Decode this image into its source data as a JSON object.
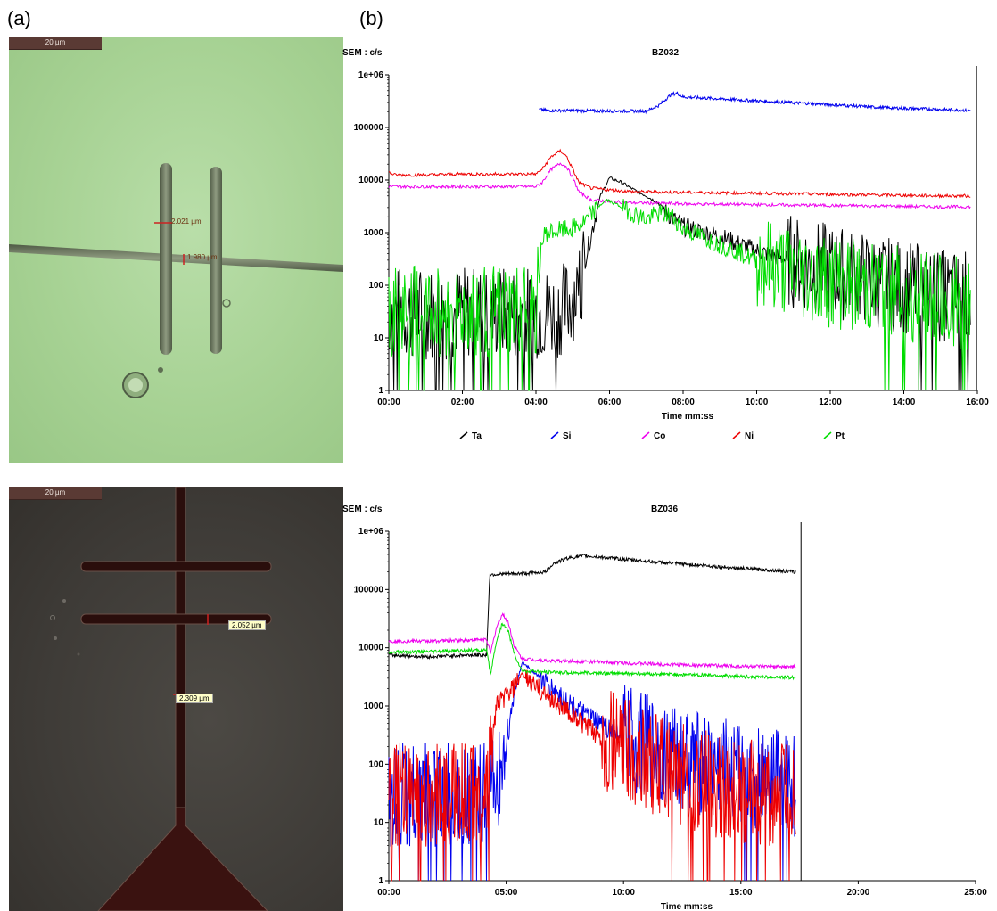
{
  "panel_labels": {
    "a": "(a)",
    "b": "(b)"
  },
  "micrographs": [
    {
      "scale_bar": "20 µm",
      "measurements": [
        "2.021 µm",
        "1.980 µm"
      ]
    },
    {
      "scale_bar": "20 µm",
      "measurements": [
        "2.052 µm",
        "2.309 µm"
      ]
    }
  ],
  "chart_data": [
    {
      "type": "line",
      "title": "BZ032",
      "ylabel": "SEM : c/s",
      "xlabel": "Time  mm:ss",
      "y_scale": "log",
      "ylim": [
        1,
        1000000
      ],
      "xlim": [
        0,
        960
      ],
      "x_unit": "seconds",
      "x_ticks": [
        0,
        120,
        240,
        360,
        480,
        600,
        720,
        840,
        960
      ],
      "x_tick_labels": [
        "00:00",
        "02:00",
        "04:00",
        "06:00",
        "08:00",
        "10:00",
        "12:00",
        "14:00",
        "16:00"
      ],
      "y_ticks": [
        1,
        10,
        100,
        1000,
        10000,
        100000,
        1000000
      ],
      "y_tick_labels": [
        "1",
        "10",
        "100",
        "1000",
        "10000",
        "100000",
        "1e+06"
      ],
      "legend": {
        "placement": "bottom",
        "entries": [
          "Ta",
          "Si",
          "Co",
          "Ni",
          "Pt"
        ]
      },
      "series": [
        {
          "name": "Ta",
          "color": "#000000",
          "points": [
            [
              0,
              30
            ],
            [
              60,
              30
            ],
            [
              120,
              30
            ],
            [
              180,
              30
            ],
            [
              240,
              30
            ],
            [
              270,
              30
            ],
            [
              290,
              40
            ],
            [
              310,
              100
            ],
            [
              330,
              900
            ],
            [
              345,
              5000
            ],
            [
              360,
              11000
            ],
            [
              380,
              9000
            ],
            [
              400,
              6500
            ],
            [
              420,
              5000
            ],
            [
              440,
              3600
            ],
            [
              460,
              2000
            ],
            [
              480,
              1300
            ],
            [
              540,
              850
            ],
            [
              600,
              450
            ],
            [
              660,
              280
            ],
            [
              720,
              190
            ],
            [
              780,
              130
            ],
            [
              840,
              90
            ],
            [
              900,
              65
            ],
            [
              950,
              60
            ]
          ]
        },
        {
          "name": "Si",
          "color": "#0000ee",
          "points": [
            [
              245,
              220000
            ],
            [
              260,
              210000
            ],
            [
              300,
              210000
            ],
            [
              360,
              205000
            ],
            [
              420,
              205000
            ],
            [
              440,
              260000
            ],
            [
              460,
              420000
            ],
            [
              470,
              450000
            ],
            [
              480,
              380000
            ],
            [
              540,
              350000
            ],
            [
              600,
              320000
            ],
            [
              700,
              280000
            ],
            [
              800,
              240000
            ],
            [
              900,
              220000
            ],
            [
              950,
              210000
            ]
          ]
        },
        {
          "name": "Co",
          "color": "#ee00ee",
          "points": [
            [
              0,
              7500
            ],
            [
              60,
              7500
            ],
            [
              120,
              7500
            ],
            [
              180,
              7500
            ],
            [
              240,
              7500
            ],
            [
              250,
              9000
            ],
            [
              265,
              16000
            ],
            [
              280,
              21000
            ],
            [
              290,
              18000
            ],
            [
              300,
              11000
            ],
            [
              310,
              6000
            ],
            [
              330,
              4200
            ],
            [
              360,
              3900
            ],
            [
              400,
              3700
            ],
            [
              500,
              3500
            ],
            [
              600,
              3400
            ],
            [
              700,
              3300
            ],
            [
              800,
              3200
            ],
            [
              900,
              3100
            ],
            [
              950,
              3100
            ]
          ]
        },
        {
          "name": "Ni",
          "color": "#ee0000",
          "points": [
            [
              0,
              14000
            ],
            [
              10,
              12500
            ],
            [
              60,
              12500
            ],
            [
              120,
              13000
            ],
            [
              180,
              13000
            ],
            [
              240,
              13000
            ],
            [
              250,
              16000
            ],
            [
              265,
              28000
            ],
            [
              280,
              36000
            ],
            [
              290,
              28000
            ],
            [
              300,
              16000
            ],
            [
              310,
              9000
            ],
            [
              330,
              7000
            ],
            [
              360,
              6500
            ],
            [
              400,
              6000
            ],
            [
              500,
              5800
            ],
            [
              600,
              5600
            ],
            [
              700,
              5400
            ],
            [
              800,
              5200
            ],
            [
              900,
              5000
            ],
            [
              950,
              5000
            ]
          ]
        },
        {
          "name": "Pt",
          "color": "#00dd00",
          "points": [
            [
              0,
              30
            ],
            [
              60,
              30
            ],
            [
              120,
              30
            ],
            [
              180,
              30
            ],
            [
              240,
              30
            ],
            [
              248,
              500
            ],
            [
              255,
              1000
            ],
            [
              280,
              1100
            ],
            [
              300,
              1200
            ],
            [
              320,
              1600
            ],
            [
              340,
              3000
            ],
            [
              355,
              4200
            ],
            [
              370,
              3500
            ],
            [
              400,
              2300
            ],
            [
              420,
              1800
            ],
            [
              440,
              2300
            ],
            [
              460,
              2200
            ],
            [
              480,
              1200
            ],
            [
              540,
              600
            ],
            [
              600,
              300
            ],
            [
              660,
              180
            ],
            [
              720,
              120
            ],
            [
              780,
              90
            ],
            [
              840,
              70
            ],
            [
              900,
              50
            ],
            [
              950,
              40
            ]
          ]
        }
      ]
    },
    {
      "type": "line",
      "title": "BZ036",
      "ylabel": "SEM : c/s",
      "xlabel": "Time  mm:ss",
      "y_scale": "log",
      "ylim": [
        1,
        1000000
      ],
      "xlim": [
        0,
        1500
      ],
      "x_unit": "seconds",
      "x_ticks": [
        0,
        300,
        600,
        900,
        1200,
        1500
      ],
      "x_tick_labels": [
        "00:00",
        "05:00",
        "10:00",
        "15:00",
        "20:00",
        "25:00"
      ],
      "y_ticks": [
        1,
        10,
        100,
        1000,
        10000,
        100000,
        1000000
      ],
      "y_tick_labels": [
        "1",
        "10",
        "100",
        "1000",
        "10000",
        "100000",
        "1e+06"
      ],
      "series": [
        {
          "name": "Ta",
          "color": "#000000",
          "points": [
            [
              0,
              7500
            ],
            [
              100,
              7000
            ],
            [
              200,
              7500
            ],
            [
              250,
              7500
            ],
            [
              258,
              180000
            ],
            [
              300,
              185000
            ],
            [
              360,
              190000
            ],
            [
              400,
              200000
            ],
            [
              420,
              280000
            ],
            [
              460,
              350000
            ],
            [
              500,
              380000
            ],
            [
              600,
              330000
            ],
            [
              700,
              290000
            ],
            [
              800,
              260000
            ],
            [
              900,
              230000
            ],
            [
              1000,
              210000
            ],
            [
              1040,
              200000
            ]
          ]
        },
        {
          "name": "Si",
          "color": "#0000ee",
          "points": [
            [
              0,
              30
            ],
            [
              100,
              30
            ],
            [
              200,
              30
            ],
            [
              250,
              30
            ],
            [
              280,
              60
            ],
            [
              300,
              200
            ],
            [
              320,
              1500
            ],
            [
              340,
              5500
            ],
            [
              360,
              4500
            ],
            [
              400,
              2500
            ],
            [
              450,
              1300
            ],
            [
              500,
              700
            ],
            [
              600,
              300
            ],
            [
              700,
              160
            ],
            [
              800,
              100
            ],
            [
              900,
              70
            ],
            [
              1000,
              50
            ],
            [
              1040,
              45
            ]
          ]
        },
        {
          "name": "Co",
          "color": "#ee00ee",
          "points": [
            [
              0,
              13000
            ],
            [
              100,
              13000
            ],
            [
              200,
              13500
            ],
            [
              250,
              14000
            ],
            [
              260,
              8000
            ],
            [
              275,
              22000
            ],
            [
              290,
              38000
            ],
            [
              305,
              28000
            ],
            [
              320,
              11000
            ],
            [
              340,
              6500
            ],
            [
              400,
              6000
            ],
            [
              500,
              5800
            ],
            [
              600,
              5500
            ],
            [
              700,
              5200
            ],
            [
              800,
              5000
            ],
            [
              900,
              4800
            ],
            [
              1000,
              4700
            ],
            [
              1040,
              4700
            ]
          ]
        },
        {
          "name": "Ni",
          "color": "#ee0000",
          "points": [
            [
              0,
              30
            ],
            [
              100,
              30
            ],
            [
              200,
              30
            ],
            [
              250,
              30
            ],
            [
              262,
              200
            ],
            [
              275,
              1000
            ],
            [
              300,
              1500
            ],
            [
              320,
              2000
            ],
            [
              340,
              3500
            ],
            [
              360,
              2600
            ],
            [
              400,
              1600
            ],
            [
              450,
              900
            ],
            [
              500,
              450
            ],
            [
              600,
              180
            ],
            [
              700,
              90
            ],
            [
              800,
              50
            ],
            [
              900,
              35
            ],
            [
              1000,
              30
            ],
            [
              1040,
              30
            ]
          ]
        },
        {
          "name": "Pt",
          "color": "#00dd00",
          "points": [
            [
              0,
              8500
            ],
            [
              100,
              8500
            ],
            [
              200,
              9000
            ],
            [
              250,
              9000
            ],
            [
              260,
              3500
            ],
            [
              275,
              13000
            ],
            [
              290,
              26000
            ],
            [
              305,
              20000
            ],
            [
              320,
              8000
            ],
            [
              340,
              4000
            ],
            [
              400,
              3800
            ],
            [
              500,
              3700
            ],
            [
              600,
              3600
            ],
            [
              700,
              3500
            ],
            [
              800,
              3400
            ],
            [
              900,
              3200
            ],
            [
              1000,
              3100
            ],
            [
              1040,
              3100
            ]
          ]
        }
      ]
    }
  ]
}
